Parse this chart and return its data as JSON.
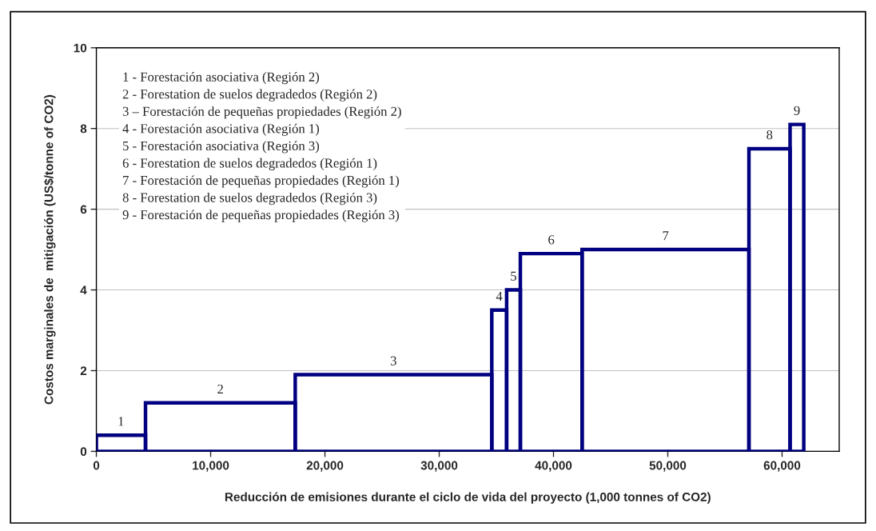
{
  "chart_data": {
    "type": "histogram",
    "xlabel": "Reducción de emisiones durante el ciclo de vida del proyecto (1,000 tonnes of CO2)",
    "ylabel": "Costos marginales de  mitigación (US$/tonne of CO2)",
    "bins": [
      0,
      4300,
      17400,
      34600,
      35900,
      37100,
      42500,
      57100,
      60700,
      61900
    ],
    "values": [
      0.4,
      1.2,
      1.9,
      3.5,
      4.0,
      4.9,
      5.0,
      7.5,
      8.1
    ],
    "color": "#000080",
    "xlim": [
      0,
      65000
    ],
    "xticks": [
      {
        "value": 0,
        "label": "0"
      },
      {
        "value": 10000,
        "label": "10,000"
      },
      {
        "value": 20000,
        "label": "20,000"
      },
      {
        "value": 30000,
        "label": "30,000"
      },
      {
        "value": 40000,
        "label": "40,000"
      },
      {
        "value": 50000,
        "label": "50,000"
      },
      {
        "value": 60000,
        "label": "60,000"
      }
    ],
    "ylim": [
      0,
      10
    ],
    "yticks": [
      0,
      2,
      4,
      6,
      8,
      10
    ],
    "grid": "y",
    "annotations": [
      {
        "text": "1",
        "x": 2150,
        "y": 0.4
      },
      {
        "text": "2",
        "x": 10850,
        "y": 1.2
      },
      {
        "text": "3",
        "x": 26000,
        "y": 1.9
      },
      {
        "text": "4",
        "x": 35250,
        "y": 3.5
      },
      {
        "text": "5",
        "x": 36500,
        "y": 4.0
      },
      {
        "text": "6",
        "x": 39800,
        "y": 4.9
      },
      {
        "text": "7",
        "x": 49800,
        "y": 5.0
      },
      {
        "text": "8",
        "x": 58900,
        "y": 7.5
      },
      {
        "text": "9",
        "x": 61300,
        "y": 8.1
      },
      "1 - Forestación asociativa (Región 2)",
      "2 - Forestation de suelos degradedos (Región 2)",
      "3 – Forestación de pequeñas propiedades (Región 2)",
      "4 - Forestación asociativa (Región 1)",
      "5 - Forestación asociativa (Región 3)",
      "6 - Forestation de suelos degradedos (Región 1)",
      "7 - Forestación de pequeñas propiedades (Región 1)",
      "8 - Forestation de suelos degradedos (Región 3)",
      "9 - Forestación de pequeñas propiedades (Región 3)"
    ]
  }
}
